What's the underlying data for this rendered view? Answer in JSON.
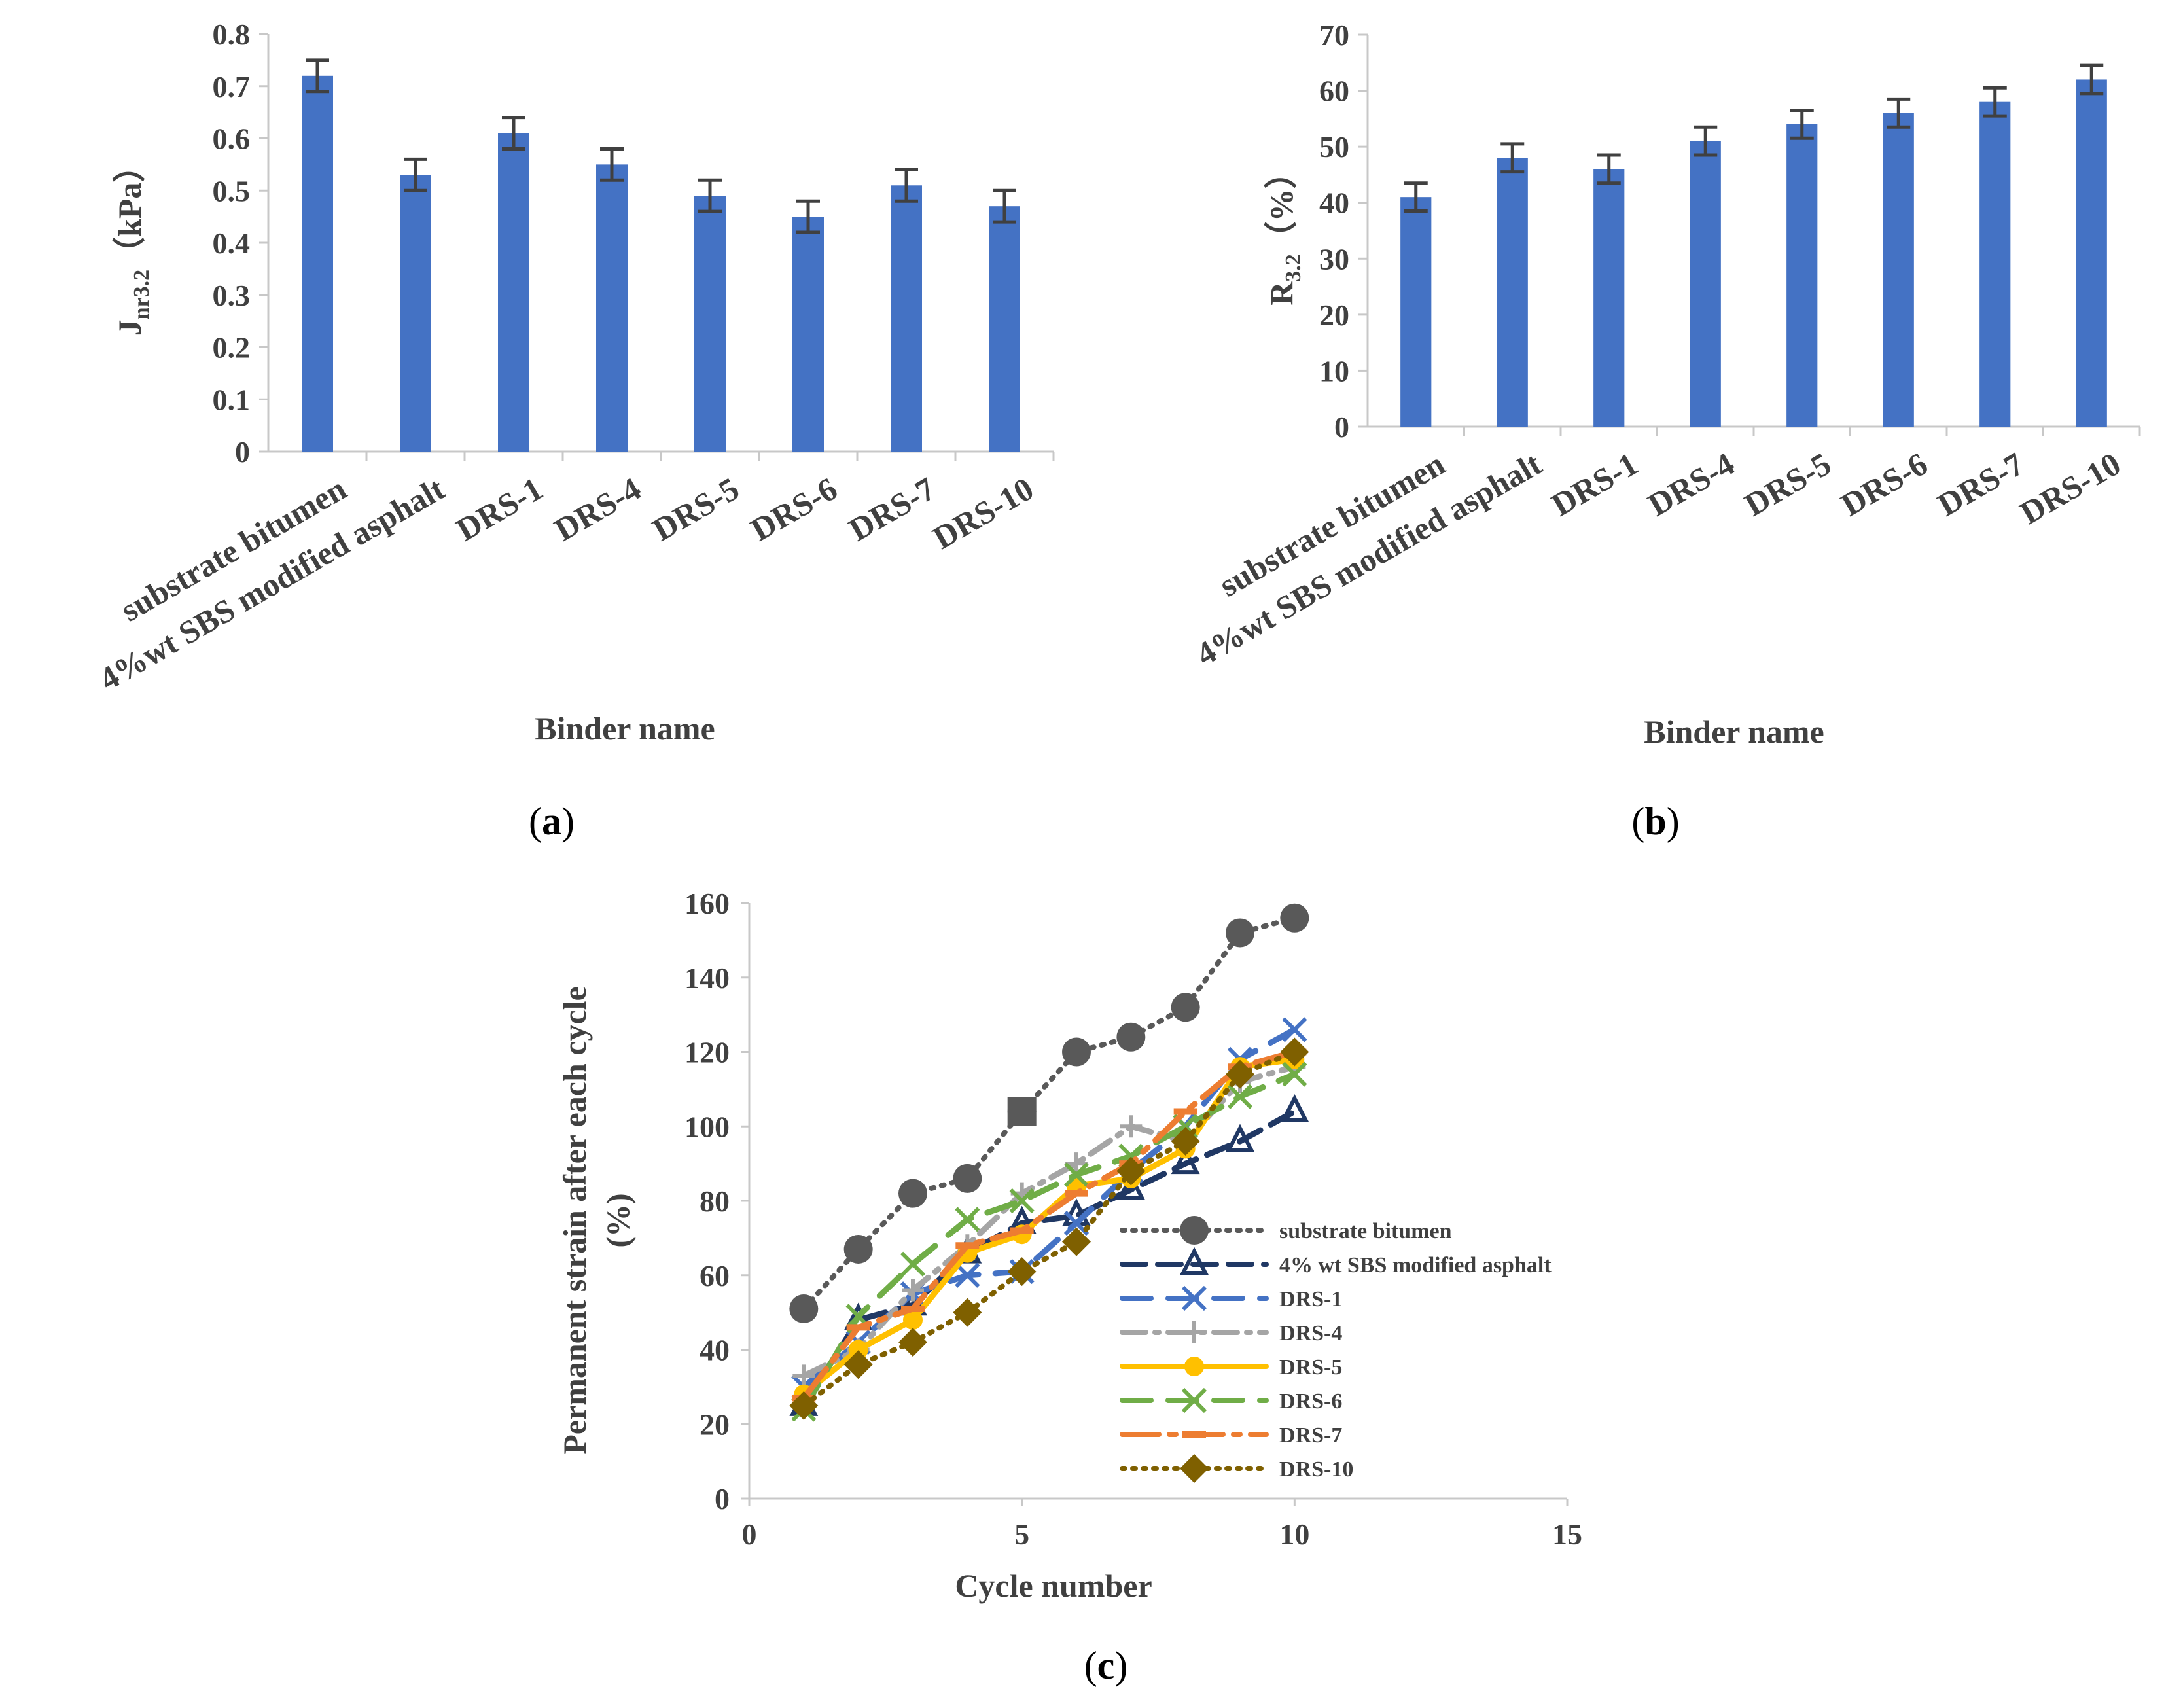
{
  "chart_data": [
    {
      "id": "a",
      "type": "bar",
      "panel_label": "(a)",
      "panel_label_parts": {
        "open": "(",
        "letter": "a",
        "close": ")"
      },
      "categories": [
        "substrate bitumen",
        "4%wt SBS modified asphalt",
        "DRS-1",
        "DRS-4",
        "DRS-5",
        "DRS-6",
        "DRS-7",
        "DRS-10"
      ],
      "values": [
        0.72,
        0.53,
        0.61,
        0.55,
        0.49,
        0.45,
        0.51,
        0.47
      ],
      "error": 0.03,
      "ylim": [
        0,
        0.8
      ],
      "yticks": [
        "0",
        "0.1",
        "0.2",
        "0.3",
        "0.4",
        "0.5",
        "0.6",
        "0.7",
        "0.8"
      ],
      "xlabel": "Binder name",
      "ylabel_main": "J",
      "ylabel_sub": "nr3.2",
      "ylabel_unit": "（kPa）",
      "bar_color": "#4472C4",
      "error_color": "#404040"
    },
    {
      "id": "b",
      "type": "bar",
      "panel_label": "(b)",
      "panel_label_parts": {
        "open": "(",
        "letter": "b",
        "close": ")"
      },
      "categories": [
        "substrate bitumen",
        "4%wt SBS modified asphalt",
        "DRS-1",
        "DRS-4",
        "DRS-5",
        "DRS-6",
        "DRS-7",
        "DRS-10"
      ],
      "values": [
        41,
        48,
        46,
        51,
        54,
        56,
        58,
        62
      ],
      "error": 2.5,
      "ylim": [
        0,
        70
      ],
      "yticks": [
        "0",
        "10",
        "20",
        "30",
        "40",
        "50",
        "60",
        "70"
      ],
      "xlabel": "Binder name",
      "ylabel_main": "R",
      "ylabel_sub": "3.2",
      "ylabel_unit": "（%）",
      "bar_color": "#4472C4",
      "error_color": "#404040"
    },
    {
      "id": "c",
      "type": "line",
      "panel_label": "(c)",
      "panel_label_parts": {
        "open": "(",
        "letter": "c",
        "close": ")"
      },
      "xlabel": "Cycle number",
      "ylabel_line1": "Permanent strain after each cycle",
      "ylabel_line2": "(%)",
      "xlim": [
        0,
        15
      ],
      "ylim": [
        0,
        160
      ],
      "xticks": [
        "0",
        "5",
        "10",
        "15"
      ],
      "yticks": [
        "0",
        "20",
        "40",
        "60",
        "80",
        "100",
        "120",
        "140",
        "160"
      ],
      "x": [
        1,
        2,
        3,
        4,
        5,
        6,
        7,
        8,
        9,
        10
      ],
      "series": [
        {
          "name": "substrate bitumen",
          "color": "#595959",
          "dash": "dot",
          "marker": "circle",
          "values": [
            51,
            67,
            82,
            86,
            104,
            120,
            124,
            132,
            152,
            156
          ]
        },
        {
          "name": "4% wt SBS modified asphalt",
          "color": "#203864",
          "dash": "dash",
          "marker": "triangle",
          "values": [
            25,
            48,
            52,
            66,
            74,
            76,
            83,
            90,
            96,
            104
          ]
        },
        {
          "name": "DRS-1",
          "color": "#4472C4",
          "dash": "longdash",
          "marker": "x",
          "values": [
            30,
            42,
            55,
            60,
            61,
            74,
            88,
            100,
            118,
            126
          ]
        },
        {
          "name": "DRS-4",
          "color": "#A5A5A5",
          "dash": "dashdot",
          "marker": "plus",
          "values": [
            33,
            40,
            56,
            68,
            82,
            90,
            100,
            96,
            112,
            116
          ]
        },
        {
          "name": "DRS-5",
          "color": "#FFC000",
          "dash": "solid",
          "marker": "circle-small",
          "values": [
            28,
            40,
            48,
            66,
            71,
            84,
            86,
            94,
            116,
            118
          ]
        },
        {
          "name": "DRS-6",
          "color": "#70AD47",
          "dash": "longdash",
          "marker": "x",
          "values": [
            24,
            49,
            63,
            75,
            80,
            87,
            92,
            100,
            108,
            114
          ]
        },
        {
          "name": "DRS-7",
          "color": "#ED7D31",
          "dash": "dashdot-long",
          "marker": "dash",
          "values": [
            27,
            46,
            51,
            68,
            72,
            82,
            90,
            104,
            116,
            120
          ]
        },
        {
          "name": "DRS-10",
          "color": "#7F6000",
          "dash": "dot",
          "marker": "diamond",
          "values": [
            25,
            36,
            42,
            50,
            61,
            69,
            88,
            96,
            114,
            120
          ]
        }
      ]
    }
  ]
}
